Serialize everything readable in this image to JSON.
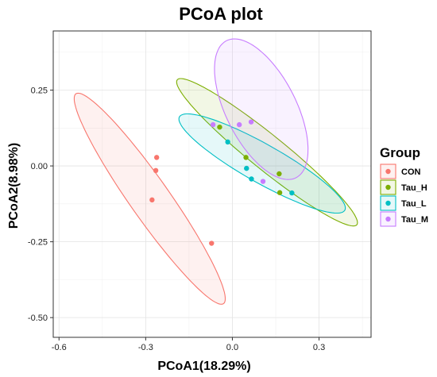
{
  "chart_data": {
    "type": "scatter",
    "title": "PCoA plot",
    "xlabel": "PCoA1(18.29%)",
    "ylabel": "PCoA2(8.98%)",
    "xlim": [
      -0.62,
      0.48
    ],
    "ylim": [
      -0.565,
      0.445
    ],
    "xticks": [
      -0.6,
      -0.3,
      0.0,
      0.3
    ],
    "xtick_labels": [
      "-0.6",
      "-0.3",
      "0.0",
      "0.3"
    ],
    "yticks": [
      -0.5,
      -0.25,
      0.0,
      0.25
    ],
    "ytick_labels": [
      "-0.50",
      "-0.25",
      "0.00",
      "0.25"
    ],
    "grid": true,
    "legend": {
      "title": "Group",
      "placement": "right"
    },
    "series": [
      {
        "name": "CON",
        "color": "#F8766D",
        "points": [
          [
            -0.262,
            0.028
          ],
          [
            -0.265,
            -0.015
          ],
          [
            -0.278,
            -0.112
          ],
          [
            -0.072,
            -0.255
          ]
        ],
        "ellipse": {
          "center": [
            -0.286,
            -0.108
          ],
          "semi_axes": [
            0.43,
            0.0675
          ],
          "angle_deg": -53.5
        }
      },
      {
        "name": "Tau_H",
        "color": "#7CAE00",
        "points": [
          [
            -0.044,
            0.128
          ],
          [
            0.047,
            0.028
          ],
          [
            0.162,
            -0.026
          ],
          [
            0.164,
            -0.088
          ]
        ],
        "ellipse": {
          "center": [
            0.12,
            0.045
          ],
          "semi_axes": [
            0.392,
            0.058
          ],
          "angle_deg": -37.5
        }
      },
      {
        "name": "Tau_L",
        "color": "#00BFC4",
        "points": [
          [
            -0.016,
            0.079
          ],
          [
            0.049,
            -0.008
          ],
          [
            0.066,
            -0.043
          ],
          [
            0.206,
            -0.089
          ]
        ],
        "ellipse": {
          "center": [
            0.103,
            0.008
          ],
          "semi_axes": [
            0.325,
            0.064
          ],
          "angle_deg": -28.2
        }
      },
      {
        "name": "Tau_M",
        "color": "#C77CFF",
        "points": [
          [
            -0.067,
            0.136
          ],
          [
            0.024,
            0.136
          ],
          [
            0.065,
            0.145
          ],
          [
            0.106,
            -0.051
          ]
        ],
        "ellipse": {
          "center": [
            0.1,
            0.187
          ],
          "semi_axes": [
            0.256,
            0.12
          ],
          "angle_deg": -61.3
        }
      }
    ]
  }
}
